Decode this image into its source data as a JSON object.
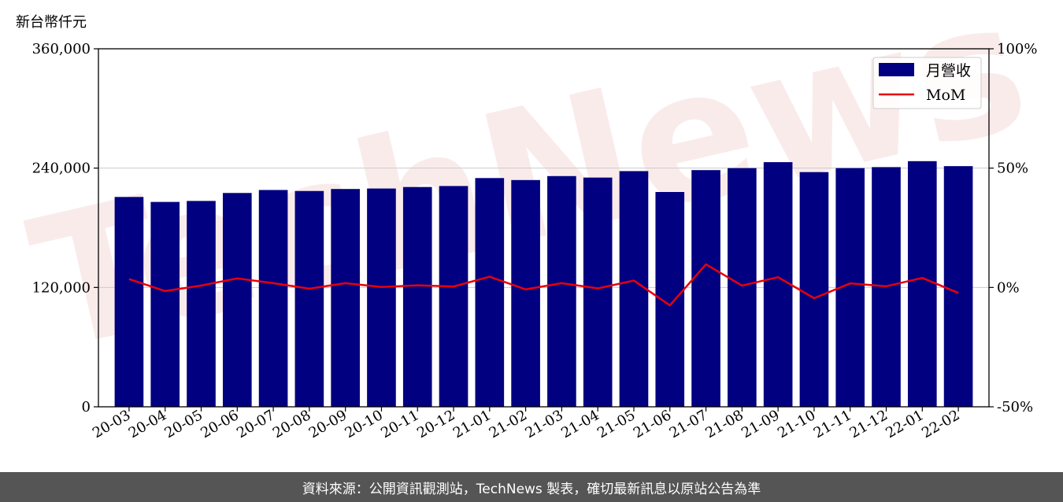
{
  "chart_data": {
    "type": "bar+line",
    "unit_label": "新台幣仟元",
    "categories": [
      "20-03",
      "20-04",
      "20-05",
      "20-06",
      "20-07",
      "20-08",
      "20-09",
      "20-10",
      "20-11",
      "20-12",
      "21-01",
      "21-02",
      "21-03",
      "21-04",
      "21-05",
      "21-06",
      "21-07",
      "21-08",
      "21-09",
      "21-10",
      "21-11",
      "21-12",
      "22-01",
      "22-02"
    ],
    "series": [
      {
        "name": "月營收",
        "axis": "left",
        "color": "#000080",
        "values": [
          211000,
          206000,
          207000,
          215000,
          218000,
          217000,
          219000,
          219500,
          221000,
          222000,
          230000,
          228000,
          232000,
          230500,
          237000,
          216000,
          238000,
          240000,
          246000,
          236000,
          240000,
          241000,
          247000,
          242000
        ]
      },
      {
        "name": "MoM",
        "axis": "right",
        "color": "#e8000b",
        "values": [
          3.5,
          -1.5,
          0.8,
          3.8,
          1.8,
          -0.5,
          1.8,
          0.2,
          0.9,
          0.4,
          4.5,
          -0.8,
          1.8,
          -0.4,
          2.9,
          -7.5,
          9.7,
          0.8,
          4.3,
          -4.5,
          1.7,
          0.5,
          4.0,
          -2.3
        ]
      }
    ],
    "y_left": {
      "min": 0,
      "max": 360000,
      "ticks": [
        0,
        120000,
        240000,
        360000
      ],
      "tick_labels": [
        "0",
        "120,000",
        "240,000",
        "360,000"
      ]
    },
    "y_right": {
      "min": -50,
      "max": 100,
      "ticks": [
        -50,
        0,
        50,
        100
      ],
      "tick_labels": [
        "-50%",
        "0%",
        "50%",
        "100%"
      ]
    },
    "grid": "horizontal",
    "legend_position": "top-right"
  },
  "watermark": "TechNews",
  "footer": "資料來源：公開資訊觀測站，TechNews 製表，確切最新訊息以原站公告為準",
  "colors": {
    "bar": "#000080",
    "line": "#e8000b",
    "footer_bg": "#555555",
    "watermark": "#f6dada"
  }
}
